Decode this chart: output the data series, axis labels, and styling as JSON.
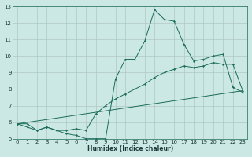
{
  "xlabel": "Humidex (Indice chaleur)",
  "xlim": [
    -0.5,
    23.5
  ],
  "ylim": [
    5,
    13
  ],
  "xticks": [
    0,
    1,
    2,
    3,
    4,
    5,
    6,
    7,
    8,
    9,
    10,
    11,
    12,
    13,
    14,
    15,
    16,
    17,
    18,
    19,
    20,
    21,
    22,
    23
  ],
  "yticks": [
    5,
    6,
    7,
    8,
    9,
    10,
    11,
    12,
    13
  ],
  "bg_color": "#cce8e4",
  "line_color": "#1a6b5a",
  "line1_x": [
    0,
    1,
    2,
    3,
    4,
    5,
    6,
    7,
    8,
    9,
    10,
    11,
    12,
    13,
    14,
    15,
    16,
    17,
    18,
    19,
    20,
    21,
    22,
    23
  ],
  "line1_y": [
    5.9,
    5.9,
    5.5,
    5.7,
    5.5,
    5.3,
    5.2,
    5.0,
    5.0,
    5.0,
    8.6,
    9.8,
    9.8,
    10.9,
    12.8,
    12.2,
    12.1,
    10.7,
    9.7,
    9.8,
    10.0,
    10.1,
    8.1,
    7.8
  ],
  "line2_x": [
    0,
    1,
    2,
    3,
    4,
    5,
    6,
    7,
    8,
    9,
    10,
    11,
    12,
    13,
    14,
    15,
    16,
    17,
    18,
    19,
    20,
    21,
    22,
    23
  ],
  "line2_y": [
    5.9,
    5.7,
    5.5,
    5.7,
    5.5,
    5.5,
    5.6,
    5.5,
    6.5,
    7.0,
    7.4,
    7.7,
    8.0,
    8.3,
    8.7,
    9.0,
    9.2,
    9.4,
    9.3,
    9.4,
    9.6,
    9.5,
    9.5,
    7.9
  ],
  "line3_x": [
    0,
    23
  ],
  "line3_y": [
    5.9,
    7.9
  ]
}
